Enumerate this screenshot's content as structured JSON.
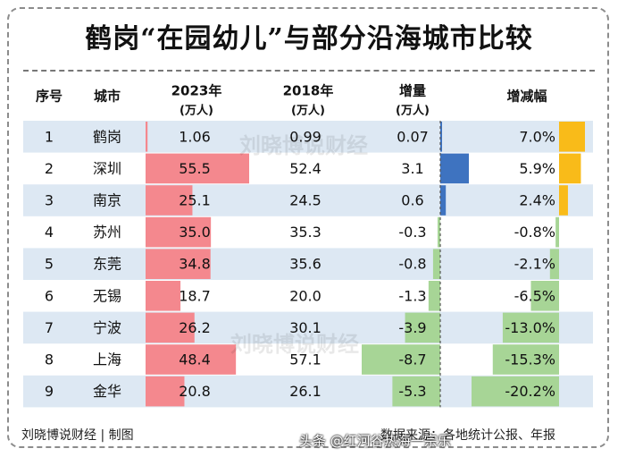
{
  "title": "鹤岗“在园幼儿”与部分沿海城市比较",
  "footer_left": "刘晓博说财经 | 制图",
  "footer_right": "数据来源：各地统计公报、年报",
  "watermark": "刘晓博说财经",
  "watermark_top": "头条 @红河谷热海一宗乐",
  "colors": {
    "row_alt": "#dde8f3",
    "bar_2023": "#f4888e",
    "bar_increase_pos": "#3e73c0",
    "bar_increase_neg": "#a7d596",
    "bar_rate_pos": "#f9bb19",
    "bar_rate_neg": "#a7d596"
  },
  "chart_data": {
    "type": "table",
    "headers": {
      "index": "序号",
      "city": "城市",
      "y2023": "2023年",
      "y2023_unit": "(万人)",
      "y2018": "2018年",
      "y2018_unit": "(万人)",
      "change": "增量",
      "change_unit": "(万人)",
      "rate": "增减幅"
    },
    "rows": [
      {
        "index": "1",
        "city": "鹤岗",
        "y2023": 1.06,
        "y2023_label": "1.06",
        "y2018": "0.99",
        "change": 0.07,
        "change_label": "0.07",
        "rate": 7.0,
        "rate_label": "7.0%"
      },
      {
        "index": "2",
        "city": "深圳",
        "y2023": 55.5,
        "y2023_label": "55.5",
        "y2018": "52.4",
        "change": 3.1,
        "change_label": "3.1",
        "rate": 5.9,
        "rate_label": "5.9%"
      },
      {
        "index": "3",
        "city": "南京",
        "y2023": 25.1,
        "y2023_label": "25.1",
        "y2018": "24.5",
        "change": 0.6,
        "change_label": "0.6",
        "rate": 2.4,
        "rate_label": "2.4%"
      },
      {
        "index": "4",
        "city": "苏州",
        "y2023": 35.0,
        "y2023_label": "35.0",
        "y2018": "35.3",
        "change": -0.3,
        "change_label": "-0.3",
        "rate": -0.8,
        "rate_label": "-0.8%"
      },
      {
        "index": "5",
        "city": "东莞",
        "y2023": 34.8,
        "y2023_label": "34.8",
        "y2018": "35.6",
        "change": -0.8,
        "change_label": "-0.8",
        "rate": -2.1,
        "rate_label": "-2.1%"
      },
      {
        "index": "6",
        "city": "无锡",
        "y2023": 18.7,
        "y2023_label": "18.7",
        "y2018": "20.0",
        "change": -1.3,
        "change_label": "-1.3",
        "rate": -6.5,
        "rate_label": "-6.5%"
      },
      {
        "index": "7",
        "city": "宁波",
        "y2023": 26.2,
        "y2023_label": "26.2",
        "y2018": "30.1",
        "change": -3.9,
        "change_label": "-3.9",
        "rate": -13.0,
        "rate_label": "-13.0%"
      },
      {
        "index": "8",
        "city": "上海",
        "y2023": 48.4,
        "y2023_label": "48.4",
        "y2018": "57.1",
        "change": -8.7,
        "change_label": "-8.7",
        "rate": -15.3,
        "rate_label": "-15.3%"
      },
      {
        "index": "9",
        "city": "金华",
        "y2023": 20.8,
        "y2023_label": "20.8",
        "y2018": "26.1",
        "change": -5.3,
        "change_label": "-5.3",
        "rate": -20.2,
        "rate_label": "-20.2%"
      }
    ]
  }
}
